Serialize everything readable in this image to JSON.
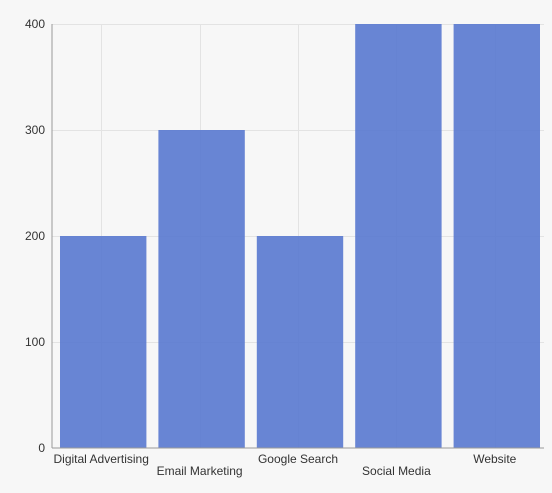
{
  "chart_data": {
    "type": "bar",
    "categories": [
      "Digital Advertising",
      "Email Marketing",
      "Google Search",
      "Social Media",
      "Website"
    ],
    "values": [
      200,
      300,
      200,
      400,
      400
    ],
    "ylim": [
      0,
      400
    ],
    "yticks": [
      0,
      100,
      200,
      300,
      400
    ],
    "grid": true,
    "bar_color": "#5b7bd0",
    "title": "",
    "xlabel": "",
    "ylabel": ""
  }
}
